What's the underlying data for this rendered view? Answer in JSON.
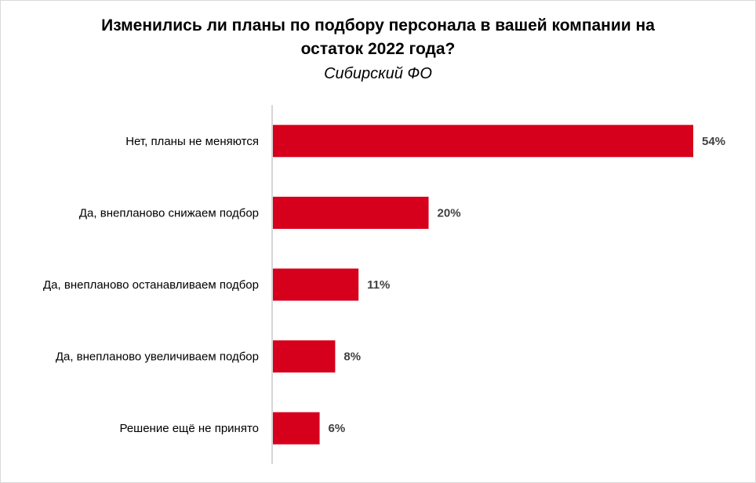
{
  "header": {
    "title_line1": "Изменились ли планы по подбору персонала в вашей компании на",
    "title_line2": "остаток 2022 года?",
    "subtitle": "Сибирский ФО"
  },
  "colors": {
    "bar": "#d6001c",
    "axis": "#bfbfbf",
    "value_label": "#404040"
  },
  "chart_data": {
    "type": "bar",
    "orientation": "horizontal",
    "title": "Изменились ли планы по подбору персонала в вашей компании на остаток 2022 года?",
    "subtitle": "Сибирский ФО",
    "categories": [
      "Нет, планы не меняются",
      "Да, внепланово снижаем подбор",
      "Да, внепланово останавливаем подбор",
      "Да, внепланово увеличиваем подбор",
      "Решение ещё не принято"
    ],
    "values": [
      54,
      20,
      11,
      8,
      6
    ],
    "value_labels": [
      "54%",
      "20%",
      "11%",
      "8%",
      "6%"
    ],
    "unit": "%",
    "xlim": [
      0,
      54
    ],
    "grid": false,
    "legend": "none"
  }
}
